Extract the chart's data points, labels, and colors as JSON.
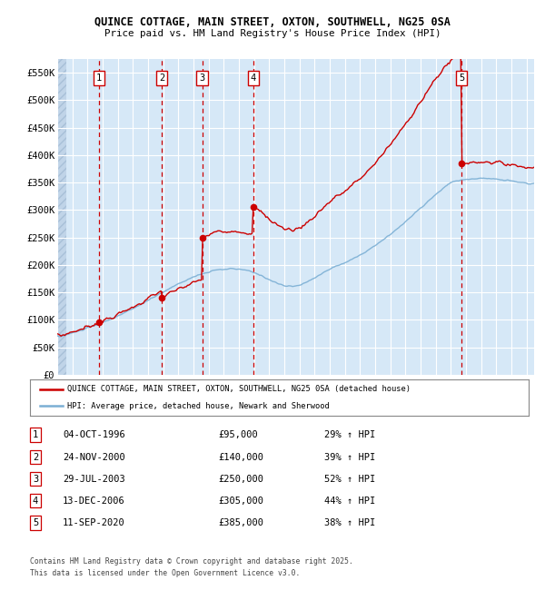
{
  "title1": "QUINCE COTTAGE, MAIN STREET, OXTON, SOUTHWELL, NG25 0SA",
  "title2": "Price paid vs. HM Land Registry's House Price Index (HPI)",
  "xlim_start": 1994.0,
  "xlim_end": 2025.5,
  "ylim": [
    0,
    575000
  ],
  "yticks": [
    0,
    50000,
    100000,
    150000,
    200000,
    250000,
    300000,
    350000,
    400000,
    450000,
    500000,
    550000
  ],
  "ytick_labels": [
    "£0",
    "£50K",
    "£100K",
    "£150K",
    "£200K",
    "£250K",
    "£300K",
    "£350K",
    "£400K",
    "£450K",
    "£500K",
    "£550K"
  ],
  "bg_color": "#d6e8f7",
  "grid_color": "#ffffff",
  "red_line_color": "#cc0000",
  "blue_line_color": "#7bafd4",
  "vline_color": "#cc0000",
  "sale_dates_x": [
    1996.75,
    2000.9,
    2003.57,
    2006.95,
    2020.7
  ],
  "sale_prices_y": [
    95000,
    140000,
    250000,
    305000,
    385000
  ],
  "sale_labels": [
    "1",
    "2",
    "3",
    "4",
    "5"
  ],
  "legend_line1": "QUINCE COTTAGE, MAIN STREET, OXTON, SOUTHWELL, NG25 0SA (detached house)",
  "legend_line2": "HPI: Average price, detached house, Newark and Sherwood",
  "table_data": [
    [
      "1",
      "04-OCT-1996",
      "£95,000",
      "29% ↑ HPI"
    ],
    [
      "2",
      "24-NOV-2000",
      "£140,000",
      "39% ↑ HPI"
    ],
    [
      "3",
      "29-JUL-2003",
      "£250,000",
      "52% ↑ HPI"
    ],
    [
      "4",
      "13-DEC-2006",
      "£305,000",
      "44% ↑ HPI"
    ],
    [
      "5",
      "11-SEP-2020",
      "£385,000",
      "38% ↑ HPI"
    ]
  ],
  "footnote1": "Contains HM Land Registry data © Crown copyright and database right 2025.",
  "footnote2": "This data is licensed under the Open Government Licence v3.0."
}
